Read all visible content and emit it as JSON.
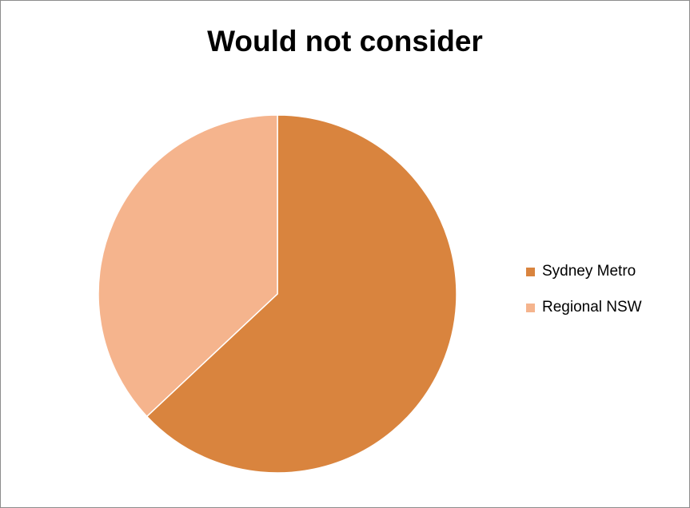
{
  "chart_data": {
    "type": "pie",
    "title": "Would not consider",
    "categories": [
      "Sydney Metro",
      "Regional NSW"
    ],
    "values": [
      63,
      37
    ],
    "colors": [
      "#D9843E",
      "#F5B48D"
    ],
    "legend_position": "right",
    "start_angle_deg": 0,
    "direction": "clockwise"
  }
}
